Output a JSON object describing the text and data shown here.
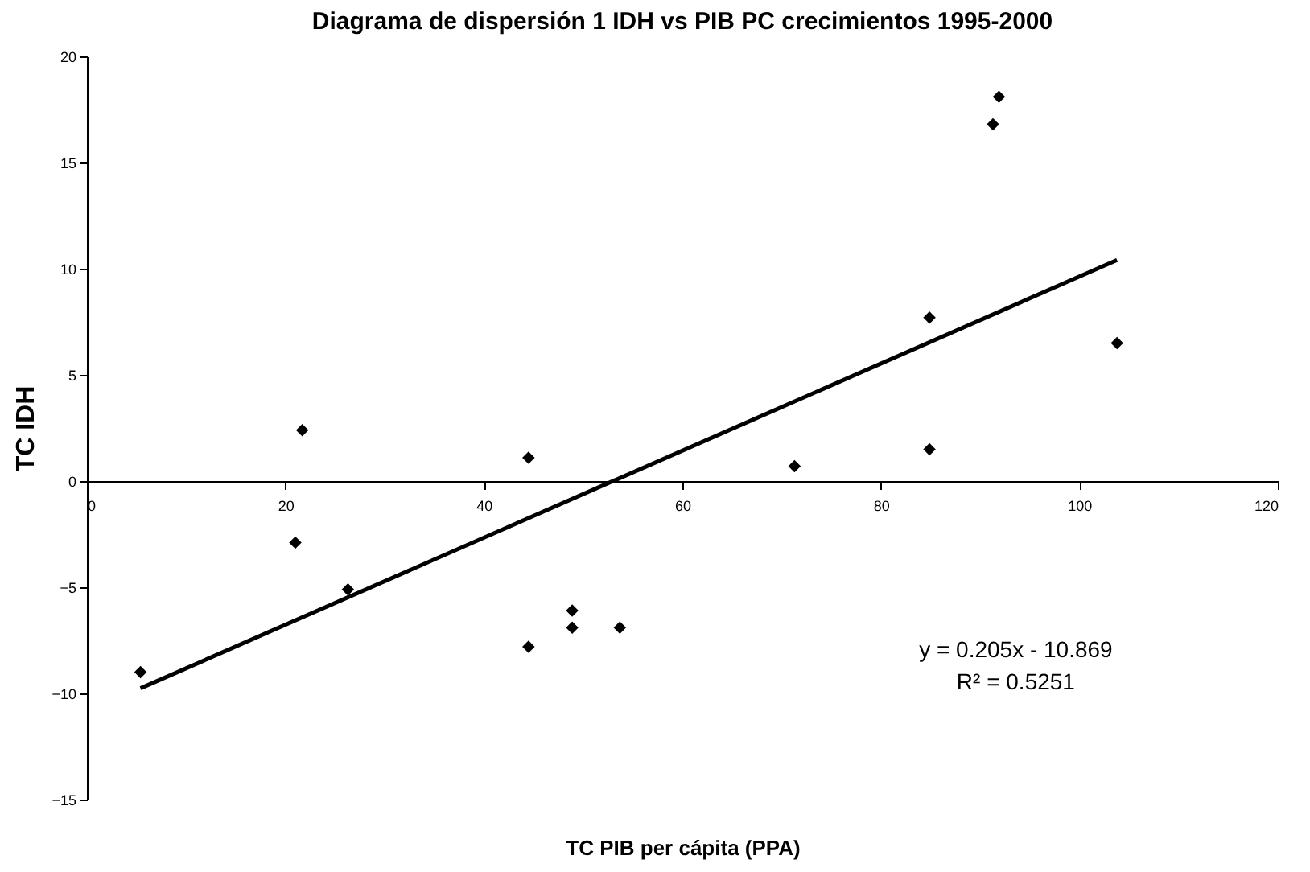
{
  "chart_data": {
    "type": "scatter",
    "title": "Diagrama de dispersión 1 IDH vs PIB PC crecimientos 1995-2000",
    "xlabel": "TC PIB per cápita (PPA)",
    "ylabel": "TC  IDH",
    "xlim": [
      0,
      120
    ],
    "xticks": [
      0,
      20,
      40,
      60,
      80,
      100,
      120
    ],
    "ylim": [
      -15,
      20
    ],
    "yticks": [
      -15,
      -10,
      -5,
      0,
      5,
      10,
      15,
      20
    ],
    "grid": false,
    "series": [
      {
        "color": "#000000",
        "marker": "diamond",
        "x": [
          5.4,
          21.0,
          21.7,
          26.3,
          44.5,
          44.5,
          48.9,
          48.9,
          53.7,
          71.3,
          84.9,
          84.9,
          91.3,
          91.9,
          103.8
        ],
        "values": [
          -9.0,
          -2.9,
          2.4,
          -5.1,
          1.1,
          -7.8,
          -6.1,
          -6.9,
          -6.9,
          0.7,
          1.5,
          7.7,
          16.8,
          18.1,
          6.5
        ]
      },
      {
        "type": "line",
        "color": "#000000",
        "marker": "none",
        "line_style": "solid",
        "x": [
          5.4,
          103.8
        ],
        "values": [
          -9.76,
          10.41
        ]
      }
    ],
    "annotations": [
      "y = 0.205x - 10.869",
      "R² = 0.5251"
    ]
  }
}
